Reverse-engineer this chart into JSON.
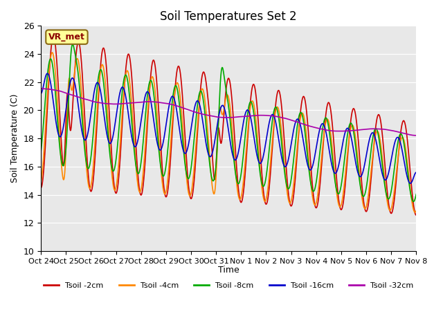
{
  "title": "Soil Temperatures Set 2",
  "ylabel": "Soil Temperature (C)",
  "xlabel": "Time",
  "ylim": [
    10,
    26
  ],
  "yticks": [
    10,
    12,
    14,
    16,
    18,
    20,
    22,
    24,
    26
  ],
  "xtick_labels": [
    "Oct 24",
    "Oct 25",
    "Oct 26",
    "Oct 27",
    "Oct 28",
    "Oct 29",
    "Oct 30",
    "Oct 31",
    "Nov 1",
    "Nov 2",
    "Nov 3",
    "Nov 4",
    "Nov 5",
    "Nov 6",
    "Nov 7",
    "Nov 8"
  ],
  "bg_color": "#e8e8e8",
  "fig_color": "#ffffff",
  "series_colors": [
    "#cc0000",
    "#ff8800",
    "#00aa00",
    "#0000cc",
    "#aa00aa"
  ],
  "series_labels": [
    "Tsoil -2cm",
    "Tsoil -4cm",
    "Tsoil -8cm",
    "Tsoil -16cm",
    "Tsoil -32cm"
  ],
  "legend_label": "VR_met",
  "legend_label_color": "#8b0000",
  "legend_label_bg": "#ffff99",
  "n_days": 15,
  "pts_per_day": 144
}
